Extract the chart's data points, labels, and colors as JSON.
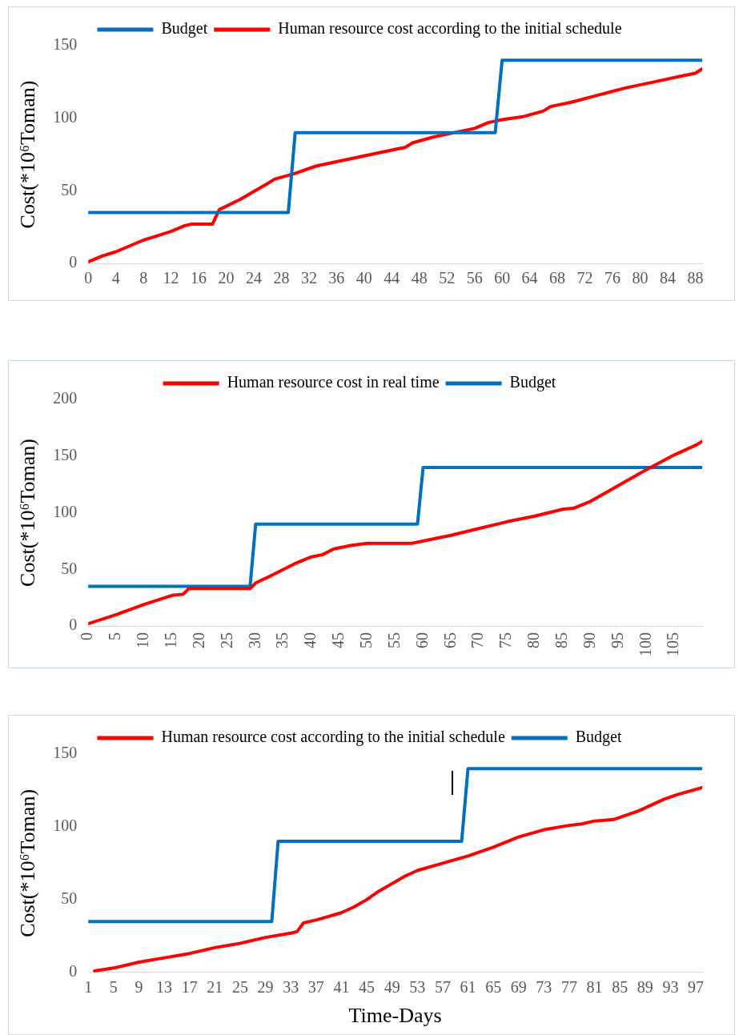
{
  "chart_data": [
    {
      "type": "line",
      "ylabel": "Cost(*10⁶Toman)",
      "legend": "top",
      "grid": false,
      "xlim": [
        0,
        89
      ],
      "xticks": [
        0,
        4,
        8,
        12,
        16,
        20,
        24,
        28,
        32,
        36,
        40,
        44,
        48,
        52,
        56,
        60,
        64,
        68,
        72,
        76,
        80,
        84,
        88
      ],
      "ylim": [
        0,
        150
      ],
      "yticks": [
        0,
        50,
        100,
        150
      ],
      "series": [
        {
          "name": "Budget",
          "color": "#0070c0",
          "x": [
            0,
            29,
            30,
            59,
            60,
            89
          ],
          "values": [
            35,
            35,
            90,
            90,
            140,
            140
          ]
        },
        {
          "name": "Human resource cost according to the initial schedule",
          "color": "#ff0000",
          "x": [
            0,
            2,
            4,
            6,
            8,
            10,
            12,
            14,
            15,
            18,
            19,
            22,
            26,
            27,
            30,
            33,
            36,
            40,
            44,
            46,
            47,
            50,
            52,
            56,
            58,
            60,
            63,
            66,
            67,
            70,
            74,
            78,
            82,
            86,
            88,
            89
          ],
          "values": [
            1,
            5,
            8,
            12,
            16,
            19,
            22,
            26,
            27,
            27,
            37,
            44,
            55,
            58,
            62,
            67,
            70,
            74,
            78,
            80,
            83,
            87,
            89,
            93,
            97,
            99,
            101,
            105,
            108,
            111,
            116,
            121,
            125,
            129,
            131,
            134
          ]
        }
      ]
    },
    {
      "type": "line",
      "ylabel": "Cost(*10⁶Toman)",
      "legend": "top",
      "grid": false,
      "xlim": [
        0,
        110
      ],
      "xticks": [
        0,
        5,
        10,
        15,
        20,
        25,
        30,
        35,
        40,
        45,
        50,
        55,
        60,
        65,
        70,
        75,
        80,
        85,
        90,
        95,
        100,
        105
      ],
      "ylim": [
        0,
        200
      ],
      "yticks": [
        0,
        50,
        100,
        150,
        200
      ],
      "series": [
        {
          "name": "Human resource cost in real time",
          "color": "#ff0000",
          "x": [
            0,
            5,
            10,
            15,
            17,
            18,
            29,
            30,
            33,
            37,
            40,
            42,
            44,
            47,
            50,
            58,
            62,
            65,
            70,
            75,
            80,
            85,
            87,
            90,
            95,
            100,
            105,
            109,
            110
          ],
          "values": [
            2,
            10,
            19,
            27,
            28,
            33,
            33,
            38,
            45,
            55,
            61,
            63,
            68,
            71,
            73,
            73,
            77,
            80,
            86,
            92,
            97,
            103,
            104,
            110,
            124,
            138,
            151,
            160,
            163
          ]
        },
        {
          "name": "Budget",
          "color": "#0070c0",
          "x": [
            0,
            29,
            30,
            59,
            60,
            110
          ],
          "values": [
            35,
            35,
            90,
            90,
            140,
            140
          ]
        }
      ]
    },
    {
      "type": "line",
      "xlabel": "Time-Days",
      "ylabel": "Cost(*10⁶Toman)",
      "legend": "top",
      "grid": false,
      "xlim": [
        1,
        98
      ],
      "xticks": [
        1,
        5,
        9,
        13,
        17,
        21,
        25,
        29,
        33,
        37,
        41,
        45,
        49,
        53,
        57,
        61,
        65,
        69,
        73,
        77,
        81,
        85,
        89,
        93,
        97
      ],
      "ylim": [
        0,
        150
      ],
      "yticks": [
        0,
        50,
        100,
        150
      ],
      "series": [
        {
          "name": "Human resource cost according to the initial schedule",
          "color": "#ff0000",
          "x": [
            2,
            5,
            9,
            13,
            17,
            21,
            25,
            29,
            33,
            34,
            35,
            37,
            41,
            43,
            45,
            47,
            49,
            51,
            53,
            57,
            61,
            65,
            69,
            73,
            77,
            79,
            81,
            84,
            86,
            88,
            92,
            94,
            98
          ],
          "values": [
            1,
            3,
            7,
            10,
            13,
            17,
            20,
            24,
            27,
            28,
            34,
            36,
            41,
            45,
            50,
            56,
            61,
            66,
            70,
            75,
            80,
            86,
            93,
            98,
            101,
            102,
            104,
            105,
            108,
            111,
            119,
            122,
            127
          ]
        },
        {
          "name": "Budget",
          "color": "#0070c0",
          "x": [
            1,
            30,
            31,
            60,
            61,
            98
          ],
          "values": [
            35,
            35,
            90,
            90,
            140,
            140
          ]
        }
      ]
    }
  ]
}
